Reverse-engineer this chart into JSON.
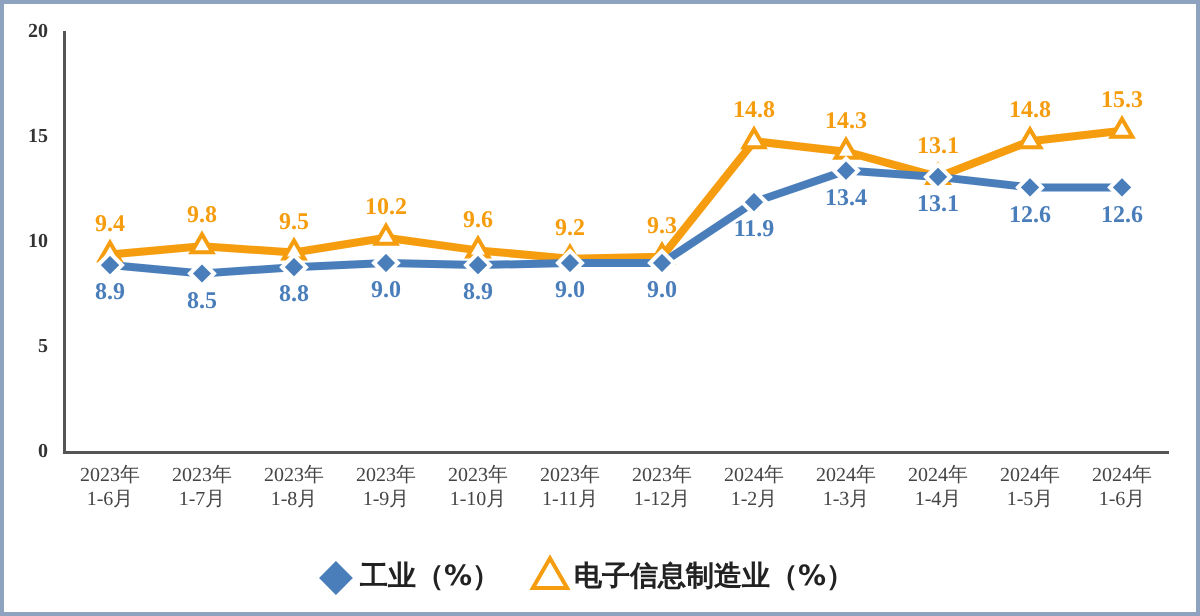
{
  "chart_data": {
    "type": "line",
    "categories": [
      "2023年\n1-6月",
      "2023年\n1-7月",
      "2023年\n1-8月",
      "2023年\n1-9月",
      "2023年\n1-10月",
      "2023年\n1-11月",
      "2023年\n1-12月",
      "2024年\n1-2月",
      "2024年\n1-3月",
      "2024年\n1-4月",
      "2024年\n1-5月",
      "2024年\n1-6月"
    ],
    "series": [
      {
        "name": "工业（%）",
        "color": "#4a7ebb",
        "marker": "diamond",
        "values": [
          8.9,
          8.5,
          8.8,
          9.0,
          8.9,
          9.0,
          9.0,
          11.9,
          13.4,
          13.1,
          12.6,
          12.6
        ],
        "value_labels": [
          "8.9",
          "8.5",
          "8.8",
          "9.0",
          "8.9",
          "9.0",
          "9.0",
          "11.9",
          "13.4",
          "13.1",
          "12.6",
          "12.6"
        ]
      },
      {
        "name": "电子信息制造业（%）",
        "color": "#f59d0e",
        "marker": "triangle",
        "values": [
          9.4,
          9.8,
          9.5,
          10.2,
          9.6,
          9.2,
          9.3,
          14.8,
          14.3,
          13.1,
          14.8,
          15.3
        ],
        "value_labels": [
          "9.4",
          "9.8",
          "9.5",
          "10.2",
          "9.6",
          "9.2",
          "9.3",
          "14.8",
          "14.3",
          "13.1",
          "14.8",
          "15.3"
        ]
      }
    ],
    "ylim": [
      0,
      20
    ],
    "yticks": [
      0,
      5,
      10,
      15,
      20
    ],
    "grid": false,
    "legend": "bottom"
  }
}
